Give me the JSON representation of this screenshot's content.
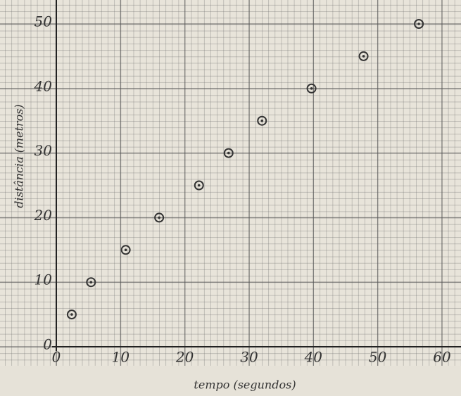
{
  "chart_data": {
    "type": "scatter",
    "x_label": "tempo (segundos)",
    "y_label": "distância (metros)",
    "x": [
      2.4,
      5.4,
      10.8,
      16,
      22.2,
      26.8,
      32,
      39.7,
      47.8,
      56.4
    ],
    "values": [
      5,
      10,
      15,
      20,
      25,
      30,
      35,
      40,
      45,
      50
    ],
    "color": "#333333",
    "xlim": [
      0,
      62
    ],
    "ylim": [
      0,
      52
    ],
    "xticks": [
      0,
      10,
      20,
      30,
      40,
      50,
      60
    ],
    "yticks": [
      0,
      10,
      20,
      30,
      40,
      50
    ],
    "grid": true
  }
}
